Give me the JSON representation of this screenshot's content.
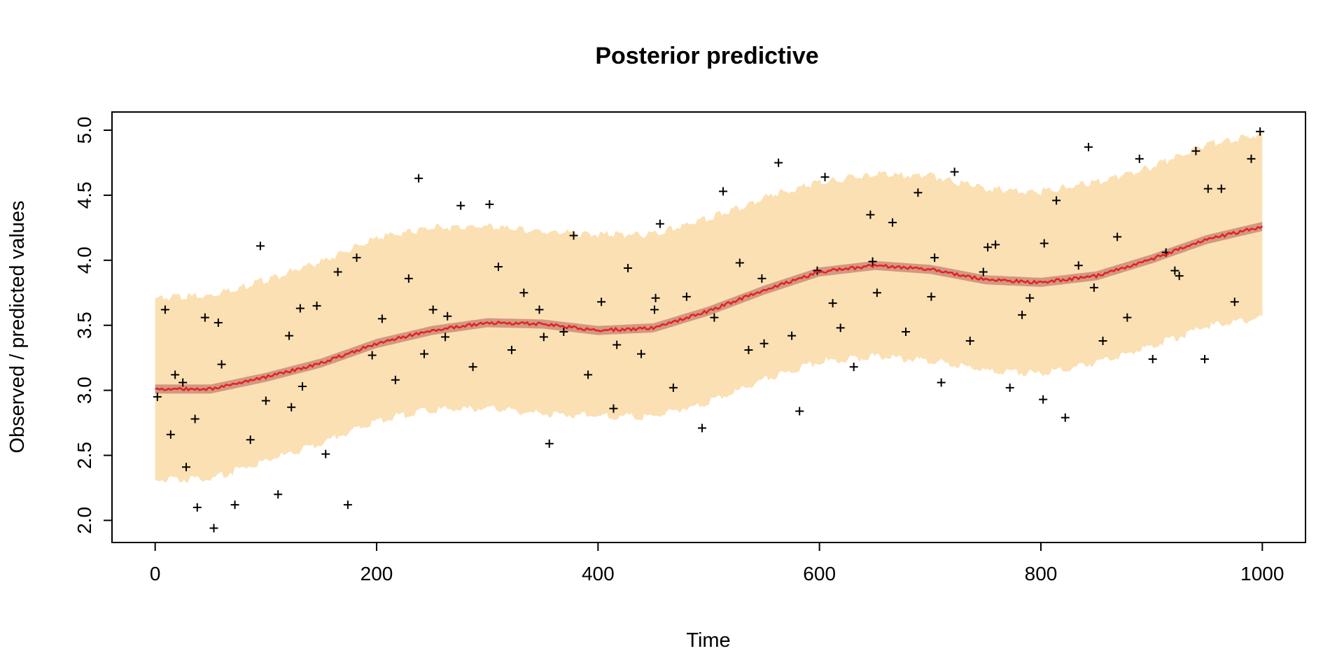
{
  "chart_data": {
    "type": "scatter",
    "title": "Posterior predictive",
    "xlabel": "Time",
    "ylabel": "Observed / predicted values",
    "xlim": [
      -39,
      1039
    ],
    "ylim": [
      1.83,
      5.14
    ],
    "xticks": [
      0,
      200,
      400,
      600,
      800,
      1000
    ],
    "yticks": [
      2.0,
      2.5,
      3.0,
      3.5,
      4.0,
      4.5,
      5.0
    ],
    "xtick_labels": [
      "0",
      "200",
      "400",
      "600",
      "800",
      "1000"
    ],
    "ytick_labels": [
      "2.0",
      "2.5",
      "3.0",
      "3.5",
      "4.0",
      "4.5",
      "5.0"
    ],
    "grid": false,
    "legend": "none",
    "colors": {
      "predictive_band": "#fbe0b3",
      "mean_band": "#c98b7a",
      "mean_line": "#e8201e",
      "points": "#000000"
    },
    "series": [
      {
        "kind": "band",
        "x": [
          0,
          50,
          100,
          150,
          200,
          250,
          300,
          350,
          400,
          450,
          500,
          550,
          600,
          650,
          700,
          750,
          800,
          850,
          900,
          950,
          1000
        ],
        "lower": [
          2.31,
          2.32,
          2.46,
          2.59,
          2.77,
          2.85,
          2.86,
          2.82,
          2.8,
          2.8,
          2.91,
          3.08,
          3.22,
          3.26,
          3.23,
          3.15,
          3.13,
          3.21,
          3.34,
          3.49,
          3.56
        ],
        "upper": [
          3.71,
          3.73,
          3.85,
          3.99,
          4.17,
          4.25,
          4.26,
          4.22,
          4.2,
          4.2,
          4.32,
          4.48,
          4.6,
          4.66,
          4.65,
          4.55,
          4.53,
          4.6,
          4.72,
          4.89,
          4.97
        ]
      },
      {
        "kind": "line",
        "x": [
          0,
          50,
          100,
          150,
          200,
          250,
          300,
          350,
          400,
          450,
          500,
          550,
          600,
          650,
          700,
          750,
          800,
          850,
          900,
          950,
          1000
        ],
        "y": [
          3.01,
          3.01,
          3.1,
          3.21,
          3.36,
          3.46,
          3.52,
          3.51,
          3.46,
          3.48,
          3.61,
          3.77,
          3.91,
          3.96,
          3.93,
          3.85,
          3.83,
          3.88,
          4.01,
          4.16,
          4.26
        ]
      },
      {
        "kind": "points",
        "marker": "+",
        "x": [
          2,
          9,
          18,
          28,
          36,
          38,
          45,
          53,
          60,
          72,
          86,
          95,
          100,
          111,
          121,
          133,
          146,
          154,
          165,
          174,
          182,
          196,
          205,
          217,
          229,
          238,
          251,
          262,
          276,
          287,
          302,
          310,
          322,
          333,
          347,
          356,
          369,
          378,
          391,
          403,
          414,
          427,
          439,
          451,
          456,
          468,
          480,
          494,
          505,
          513,
          528,
          536,
          548,
          563,
          575,
          582,
          598,
          605,
          619,
          631,
          646,
          652,
          666,
          678,
          689,
          701,
          710,
          722,
          736,
          748,
          759,
          772,
          783,
          790,
          802,
          814,
          822,
          834,
          843,
          856,
          869,
          878,
          889,
          901,
          913,
          925,
          940,
          948,
          963,
          975,
          990,
          998,
          14,
          57,
          123,
          243,
          351,
          452,
          550,
          648,
          752,
          848,
          951,
          25,
          131,
          264,
          417,
          612,
          704,
          803,
          921
        ],
        "y": [
          2.95,
          3.62,
          3.12,
          2.41,
          2.78,
          2.1,
          3.56,
          1.94,
          3.2,
          2.12,
          2.62,
          4.11,
          2.92,
          2.2,
          3.42,
          3.03,
          3.65,
          2.51,
          3.91,
          2.12,
          4.02,
          3.27,
          3.55,
          3.08,
          3.86,
          4.63,
          3.62,
          3.41,
          4.42,
          3.18,
          4.43,
          3.95,
          3.31,
          3.75,
          3.62,
          2.59,
          3.45,
          4.19,
          3.12,
          3.68,
          2.86,
          3.94,
          3.28,
          3.62,
          4.28,
          3.02,
          3.72,
          2.71,
          3.56,
          4.53,
          3.98,
          3.31,
          3.86,
          4.75,
          3.42,
          2.84,
          3.92,
          4.64,
          3.48,
          3.18,
          4.35,
          3.75,
          4.29,
          3.45,
          4.52,
          3.72,
          3.06,
          4.68,
          3.38,
          3.91,
          4.12,
          3.02,
          3.58,
          3.71,
          2.93,
          4.46,
          2.79,
          3.96,
          4.87,
          3.38,
          4.18,
          3.56,
          4.78,
          3.24,
          4.06,
          3.88,
          4.84,
          3.24,
          4.55,
          3.68,
          4.78,
          4.99,
          2.66,
          3.52,
          2.87,
          3.28,
          3.41,
          3.71,
          3.36,
          3.99,
          4.1,
          3.79,
          4.55,
          3.06,
          3.63,
          3.57,
          3.35,
          3.67,
          4.02,
          4.13,
          3.92
        ]
      }
    ]
  }
}
